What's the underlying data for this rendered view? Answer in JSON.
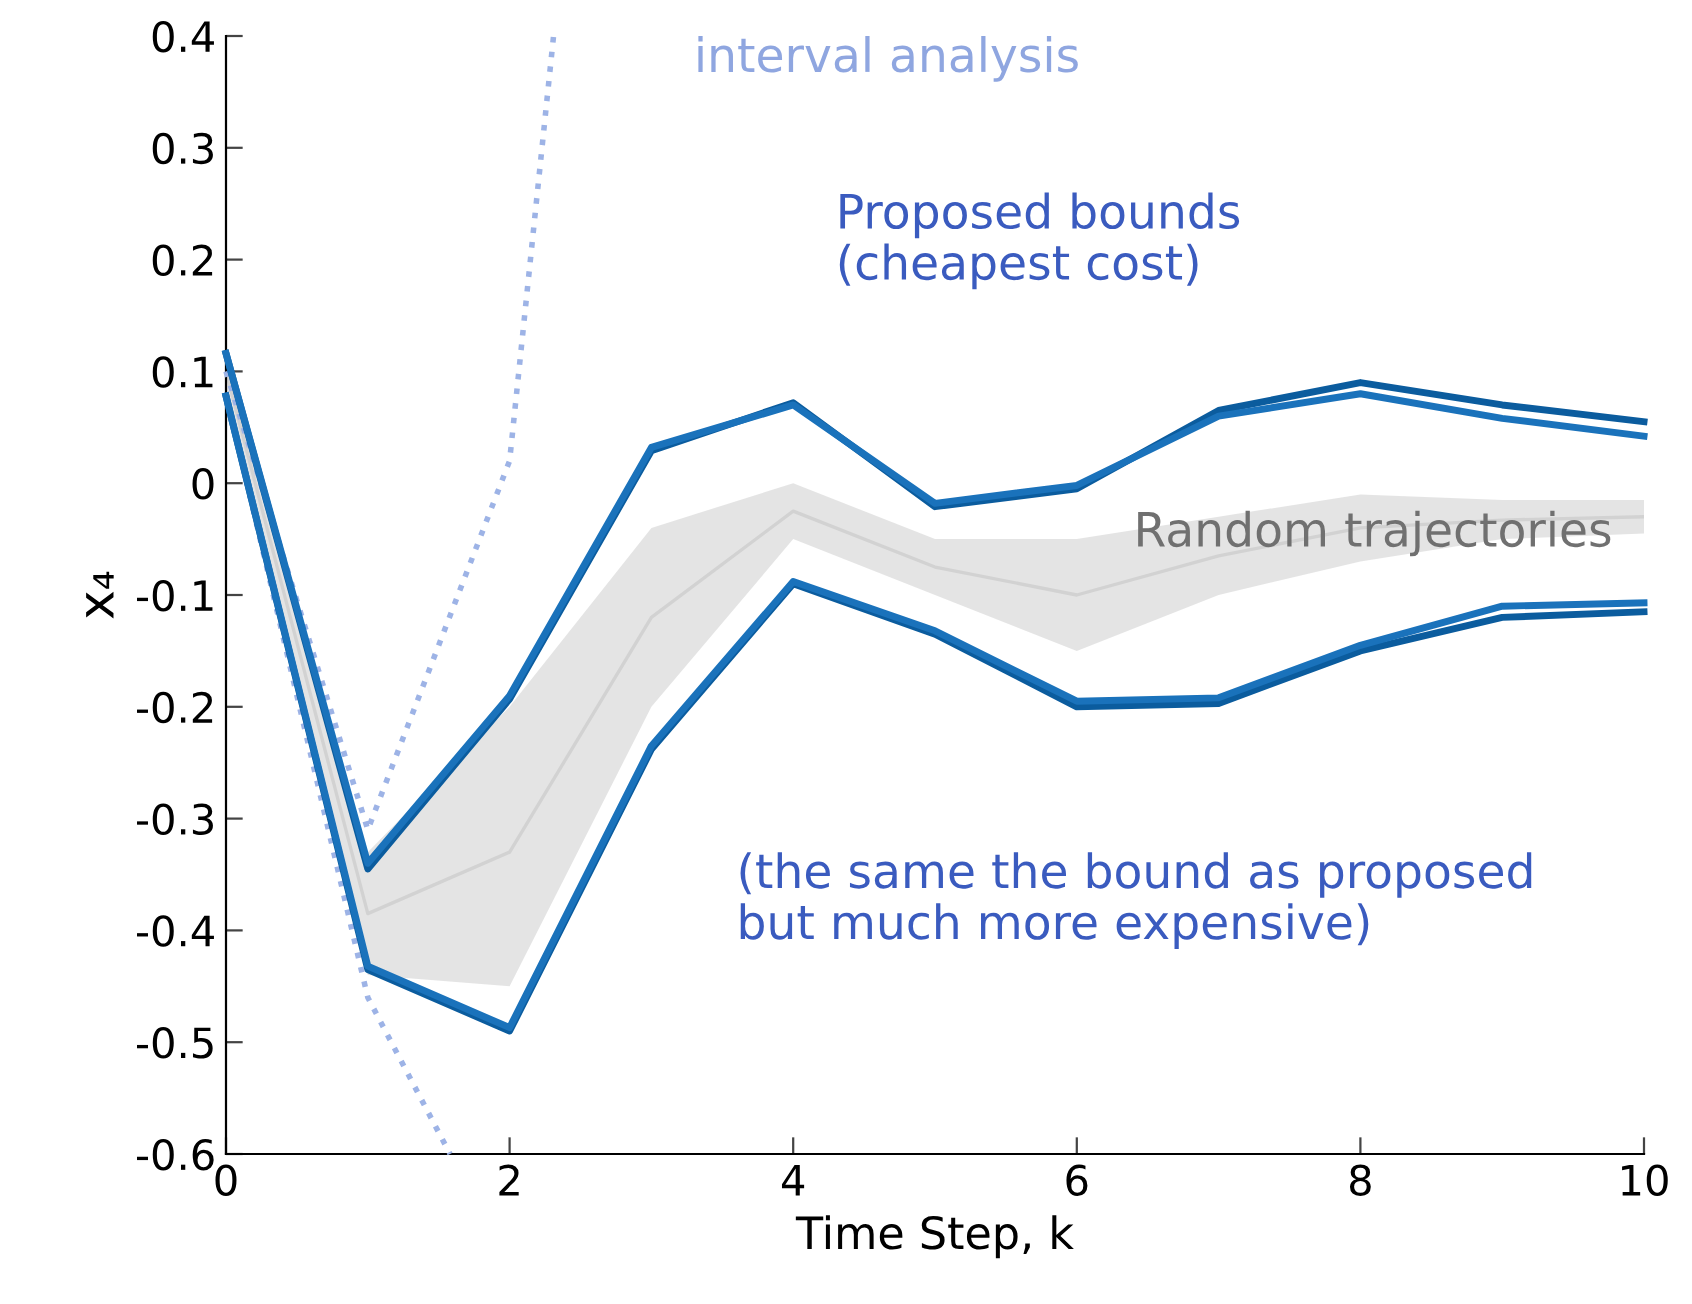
{
  "chart_data": {
    "type": "line",
    "xlabel": "Time Step, k",
    "ylabel": "x₄",
    "x": [
      0,
      1,
      2,
      3,
      4,
      5,
      6,
      7,
      8,
      9,
      10
    ],
    "xlim": [
      0,
      10
    ],
    "xticks": [
      0,
      2,
      4,
      6,
      8,
      10
    ],
    "ylim": [
      -0.6,
      0.4
    ],
    "yticks": [
      -0.6,
      -0.5,
      -0.4,
      -0.3,
      -0.2,
      -0.1,
      0,
      0.1,
      0.2,
      0.3,
      0.4
    ],
    "grid": false,
    "legend": false,
    "marker": "none",
    "series": [
      {
        "name": "interval analysis",
        "color": "#9db3e6",
        "line_style": "dotted",
        "x": [
          0,
          1,
          2,
          2.31
        ],
        "values": [
          0.1,
          -0.31,
          0.02,
          0.4
        ]
      },
      {
        "color": "#9db3e6",
        "line_style": "dotted",
        "x": [
          0,
          1,
          1.58
        ],
        "values": [
          0.08,
          -0.46,
          -0.6
        ]
      },
      {
        "name": "Random trajectories",
        "color": "#d2d2d2",
        "values": [
          0.1,
          -0.385,
          -0.33,
          -0.12,
          -0.025,
          -0.075,
          -0.1,
          -0.065,
          -0.04,
          -0.033,
          -0.03
        ],
        "lower": [
          0.08,
          -0.44,
          -0.45,
          -0.2,
          -0.05,
          -0.1,
          -0.15,
          -0.1,
          -0.07,
          -0.05,
          -0.045
        ],
        "upper": [
          0.12,
          -0.33,
          -0.2,
          -0.04,
          0.0,
          -0.05,
          -0.05,
          -0.03,
          -0.01,
          -0.015,
          -0.015
        ]
      },
      {
        "name": "Proposed bounds\n(cheapest cost)",
        "color": "#0b5c9e",
        "values": [
          0.116,
          -0.345,
          -0.193,
          0.029,
          0.072,
          -0.021,
          -0.005,
          0.065,
          0.09,
          0.07,
          0.055
        ]
      },
      {
        "color": "#1a72bb",
        "values": [
          0.116,
          -0.34,
          -0.19,
          0.032,
          0.07,
          -0.018,
          -0.002,
          0.06,
          0.08,
          0.058,
          0.042
        ]
      },
      {
        "name": "(the same the bound as proposed\nbut much more expensive)",
        "color": "#0b5c9e",
        "values": [
          0.078,
          -0.435,
          -0.49,
          -0.238,
          -0.09,
          -0.135,
          -0.2,
          -0.197,
          -0.15,
          -0.12,
          -0.115
        ]
      },
      {
        "color": "#1a72bb",
        "values": [
          0.078,
          -0.432,
          -0.487,
          -0.235,
          -0.088,
          -0.132,
          -0.195,
          -0.192,
          -0.145,
          -0.11,
          -0.107
        ]
      }
    ]
  }
}
